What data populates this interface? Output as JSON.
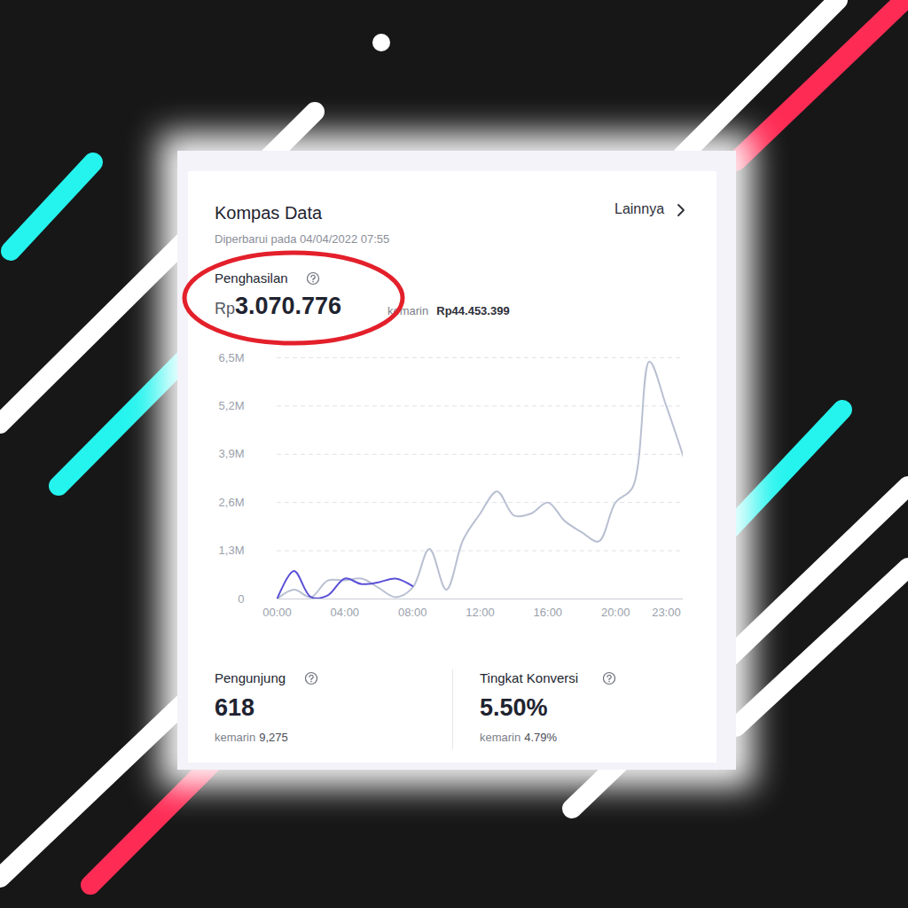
{
  "header": {
    "title": "Kompas Data",
    "link": "Lainnya",
    "updated": "Diperbarui pada 04/04/2022 07:55"
  },
  "revenue": {
    "label": "Penghasilan",
    "currency": "Rp",
    "value": "3.070.776",
    "compare_label": "kemarin",
    "compare_value": "Rp44.453.399"
  },
  "chart_data": {
    "type": "line",
    "x": [
      0,
      1,
      2,
      3,
      4,
      5,
      6,
      7,
      8,
      9,
      10,
      11,
      12,
      13,
      14,
      15,
      16,
      17,
      18,
      19,
      20,
      21,
      22,
      23,
      24
    ],
    "series": [
      {
        "color": "#b9c0d2",
        "values": [
          0,
          0.25,
          0.05,
          0.5,
          0.5,
          0.55,
          0.3,
          0.05,
          0.3,
          1.35,
          0.25,
          1.6,
          2.3,
          2.9,
          2.25,
          2.3,
          2.6,
          2.1,
          1.8,
          1.55,
          2.6,
          3.0,
          6.4,
          5.2,
          3.85
        ]
      },
      {
        "color": "#5b50d6",
        "values": [
          0,
          0.75,
          0.05,
          0.1,
          0.55,
          0.4,
          0.45,
          0.55,
          0.35,
          null,
          null,
          null,
          null,
          null,
          null,
          null,
          null,
          null,
          null,
          null,
          null,
          null,
          null,
          null,
          null
        ]
      }
    ],
    "xlim": [
      0,
      24
    ],
    "xticks": [
      {
        "value": 0,
        "label": "00:00"
      },
      {
        "value": 4,
        "label": "04:00"
      },
      {
        "value": 8,
        "label": "08:00"
      },
      {
        "value": 12,
        "label": "12:00"
      },
      {
        "value": 16,
        "label": "16:00"
      },
      {
        "value": 20,
        "label": "20:00"
      },
      {
        "value": 23,
        "label": "23:00"
      }
    ],
    "ylim": [
      0,
      6.5
    ],
    "yticks": [
      0,
      {
        "value": 1.3,
        "label": "1,3M"
      },
      {
        "value": 2.6,
        "label": "2,6M"
      },
      {
        "value": 3.9,
        "label": "3,9M"
      },
      {
        "value": 5.2,
        "label": "5,2M"
      },
      {
        "value": 6.5,
        "label": "6,5M"
      }
    ],
    "grid": true
  },
  "metrics": [
    {
      "label": "Pengunjung",
      "value": "618",
      "compare_label": "kemarin",
      "compare_value": "9,275"
    },
    {
      "label": "Tingkat Konversi",
      "value": "5.50%",
      "compare_label": "kemarin",
      "compare_value": "4.79%"
    }
  ]
}
